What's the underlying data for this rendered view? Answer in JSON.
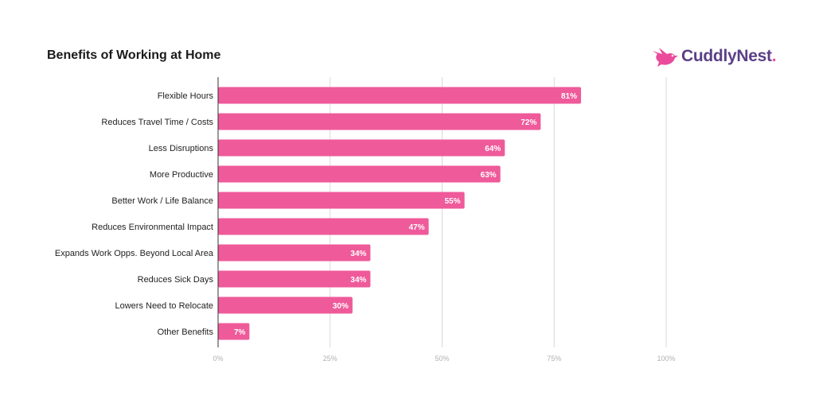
{
  "brand": {
    "name": "CuddlyNest",
    "logo_icon": "bird-icon",
    "colors": {
      "text": "#5b3f86",
      "accent": "#ea4c9b"
    }
  },
  "chart_data": {
    "type": "bar",
    "orientation": "horizontal",
    "title": "Benefits of Working at Home",
    "categories": [
      "Flexible Hours",
      "Reduces Travel Time / Costs",
      "Less Disruptions",
      "More Productive",
      "Better Work / Life Balance",
      "Reduces Environmental Impact",
      "Expands Work Opps. Beyond Local Area",
      "Reduces Sick Days",
      "Lowers Need to Relocate",
      "Other Benefits"
    ],
    "values": [
      81,
      72,
      64,
      63,
      55,
      47,
      34,
      34,
      30,
      7
    ],
    "value_labels": [
      "81%",
      "72%",
      "64%",
      "63%",
      "55%",
      "47%",
      "34%",
      "34%",
      "30%",
      "7%"
    ],
    "xlim": [
      0,
      100
    ],
    "x_ticks": [
      0,
      25,
      50,
      75,
      100
    ],
    "x_tick_labels": [
      "0%",
      "25%",
      "50%",
      "75%",
      "100%"
    ],
    "grid": true,
    "legend": "none",
    "bar_color": "#ef5a9a"
  }
}
